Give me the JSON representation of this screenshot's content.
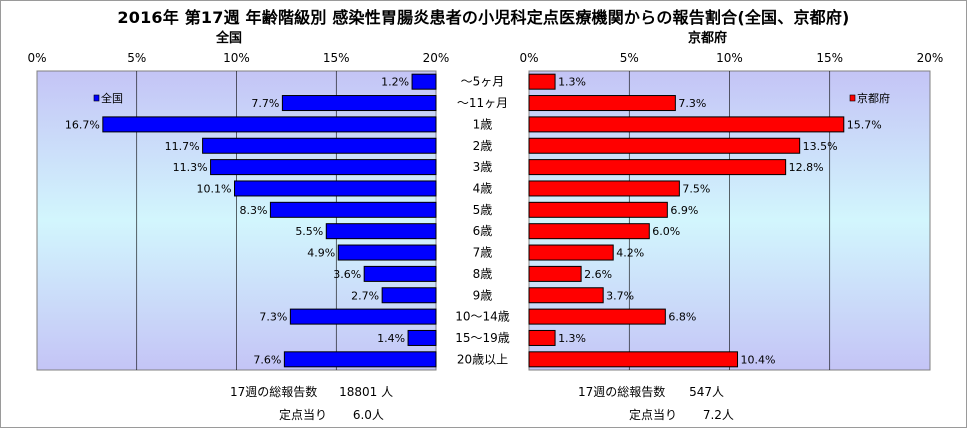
{
  "title": "2016年 第17週 年齢階級別 感染性胃腸炎患者の小児科定点医療機関からの報告割合(全国、京都府)",
  "chart_data": {
    "type": "bar",
    "orientation": "horizontal-butterfly",
    "categories": [
      "～5ヶ月",
      "～11ヶ月",
      "1歳",
      "2歳",
      "3歳",
      "4歳",
      "5歳",
      "6歳",
      "7歳",
      "8歳",
      "9歳",
      "10～14歳",
      "15～19歳",
      "20歳以上"
    ],
    "series": [
      {
        "name": "全国",
        "color": "#0000ff",
        "values": [
          1.2,
          7.7,
          16.7,
          11.7,
          11.3,
          10.1,
          8.3,
          5.5,
          4.9,
          3.6,
          2.7,
          7.3,
          1.4,
          7.6
        ],
        "data_labels": [
          "1.2%",
          "7.7%",
          "16.7%",
          "11.7%",
          "11.3%",
          "10.1%",
          "8.3%",
          "5.5%",
          "4.9%",
          "3.6%",
          "2.7%",
          "7.3%",
          "1.4%",
          "7.6%"
        ]
      },
      {
        "name": "京都府",
        "color": "#ff0000",
        "values": [
          1.3,
          7.3,
          15.7,
          13.5,
          12.8,
          7.5,
          6.9,
          6.0,
          4.2,
          2.6,
          3.7,
          6.8,
          1.3,
          10.4
        ],
        "data_labels": [
          "1.3%",
          "7.3%",
          "15.7%",
          "13.5%",
          "12.8%",
          "7.5%",
          "6.9%",
          "6.0%",
          "4.2%",
          "2.6%",
          "3.7%",
          "6.8%",
          "1.3%",
          "10.4%"
        ]
      }
    ],
    "xlim": [
      0,
      20
    ],
    "xticks": [
      0,
      5,
      10,
      15,
      20
    ],
    "left_tick_labels": [
      "20%",
      "15%",
      "10%",
      "5%",
      "0%"
    ],
    "right_tick_labels": [
      "0%",
      "5%",
      "10%",
      "15%",
      "20%"
    ],
    "grid": true,
    "legend_placement": "top-left (left panel), top-right (right panel)"
  },
  "left_panel": {
    "header": "全国",
    "total_label": "17週の総報告数",
    "total_value": "18801 人",
    "per_site_label": "定点当り",
    "per_site_value": "6.0人"
  },
  "right_panel": {
    "header": "京都府",
    "total_label": "17週の総報告数",
    "total_value": "547人",
    "per_site_label": "定点当り",
    "per_site_value": "7.2人"
  }
}
